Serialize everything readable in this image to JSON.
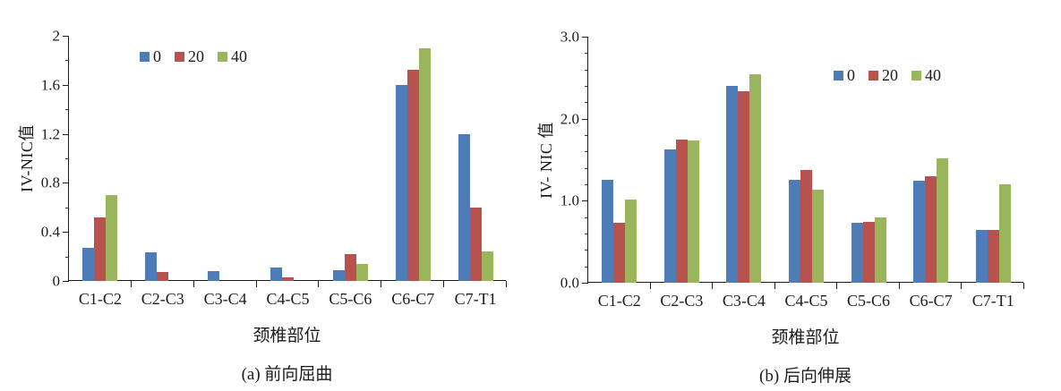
{
  "page": {
    "background": "#ffffff"
  },
  "colors": {
    "series": [
      "#4d7cb7",
      "#b8524f",
      "#9ab55c"
    ],
    "axis": "#1c1c1c",
    "text": "#1c1c1c"
  },
  "chart_data": [
    {
      "id": "forward-flexion",
      "type": "bar",
      "title": "(a) 前向屈曲",
      "xlabel": "颈椎部位",
      "ylabel": "IV-NIC值",
      "categories": [
        "C1-C2",
        "C2-C3",
        "C3-C4",
        "C4-C5",
        "C5-C6",
        "C6-C7",
        "C7-T1"
      ],
      "series": [
        {
          "name": "0",
          "values": [
            0.27,
            0.23,
            0.08,
            0.11,
            0.09,
            1.6,
            1.2
          ]
        },
        {
          "name": "20",
          "values": [
            0.52,
            0.07,
            0.0,
            0.03,
            0.22,
            1.72,
            0.6
          ]
        },
        {
          "name": "40",
          "values": [
            0.7,
            0.0,
            0.0,
            0.0,
            0.14,
            1.9,
            0.24
          ]
        }
      ],
      "ylim": [
        0,
        2
      ],
      "y_ticks": [
        {
          "value": 0,
          "label": "0"
        },
        {
          "value": 0.4,
          "label": "0.4"
        },
        {
          "value": 0.8,
          "label": "0.8"
        },
        {
          "value": 1.2,
          "label": "1.2"
        },
        {
          "value": 1.6,
          "label": "1.6"
        },
        {
          "value": 2,
          "label": "2"
        }
      ],
      "minor_tick_step": 0.2,
      "grid": false,
      "legend_position": "inside-top-left",
      "legend_labels": [
        "0",
        "20",
        "40"
      ]
    },
    {
      "id": "backward-extension",
      "type": "bar",
      "title": "(b) 后向伸展",
      "xlabel": "颈椎部位",
      "ylabel": "IV- NIC 值",
      "categories": [
        "C1-C2",
        "C2-C3",
        "C3-C4",
        "C4-C5",
        "C5-C6",
        "C6-C7",
        "C7-T1"
      ],
      "series": [
        {
          "name": "0",
          "values": [
            1.25,
            1.63,
            2.4,
            1.25,
            0.73,
            1.24,
            0.64
          ]
        },
        {
          "name": "20",
          "values": [
            0.73,
            1.75,
            2.34,
            1.38,
            0.74,
            1.3,
            0.64
          ]
        },
        {
          "name": "40",
          "values": [
            1.02,
            1.74,
            2.54,
            1.14,
            0.8,
            1.52,
            1.2
          ]
        }
      ],
      "ylim": [
        0,
        3
      ],
      "y_ticks": [
        {
          "value": 0,
          "label": "0.0"
        },
        {
          "value": 1,
          "label": "1.0"
        },
        {
          "value": 2,
          "label": "2.0"
        },
        {
          "value": 3,
          "label": "3.0"
        }
      ],
      "minor_tick_step": 0.2,
      "grid": false,
      "legend_position": "inside-top-right",
      "legend_labels": [
        "0",
        "20",
        "40"
      ]
    }
  ]
}
